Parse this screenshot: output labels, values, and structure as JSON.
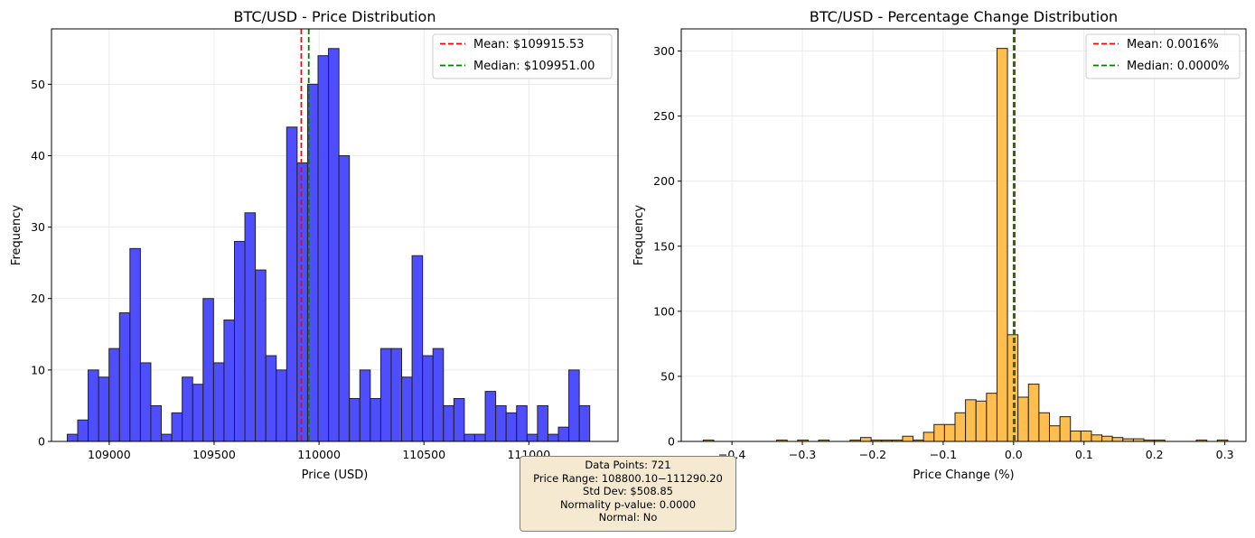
{
  "colors": {
    "bar1_fill": "#4444ff",
    "bar2_fill": "#ffbb44",
    "bar_edge": "#222222",
    "mean_line": "#ff0000",
    "median_line": "#008000",
    "grid": "#e6e6e6"
  },
  "chart_data": [
    {
      "type": "bar",
      "title": "BTC/USD - Price Distribution",
      "xlabel": "Price (USD)",
      "ylabel": "Frequency",
      "xlim": [
        108725,
        111425
      ],
      "ylim": [
        0,
        57.75
      ],
      "xticks": [
        109000,
        109500,
        110000,
        110500,
        111000
      ],
      "yticks": [
        0,
        10,
        20,
        30,
        40,
        50
      ],
      "grid": true,
      "legend_position": "top-right",
      "bin_start": 108800.1,
      "bin_end": 111290.2,
      "values": [
        1,
        3,
        10,
        9,
        13,
        18,
        27,
        11,
        5,
        1,
        4,
        9,
        8,
        20,
        11,
        17,
        28,
        32,
        24,
        12,
        10,
        44,
        39,
        50,
        54,
        55,
        40,
        6,
        10,
        6,
        13,
        13,
        9,
        26,
        12,
        13,
        5,
        6,
        1,
        1,
        7,
        5,
        4,
        5,
        1,
        5,
        1,
        2,
        10,
        5
      ],
      "mean": 109915.53,
      "median": 109951.0,
      "legend": [
        "Mean: $109915.53",
        "Median: $109951.00"
      ]
    },
    {
      "type": "bar",
      "title": "BTC/USD - Percentage Change Distribution",
      "xlabel": "Price Change (%)",
      "ylabel": "Frequency",
      "xlim": [
        -0.472,
        0.33
      ],
      "ylim": [
        0,
        317
      ],
      "xticks": [
        -0.4,
        -0.3,
        -0.2,
        -0.1,
        0.0,
        0.1,
        0.2,
        0.3
      ],
      "xtick_labels": [
        "−0.4",
        "−0.3",
        "−0.2",
        "−0.1",
        "0.0",
        "0.1",
        "0.2",
        "0.3"
      ],
      "yticks": [
        0,
        50,
        100,
        150,
        200,
        250,
        300
      ],
      "grid": true,
      "legend_position": "top-right",
      "bin_start": -0.4408,
      "bin_width": 0.0149,
      "values": [
        1,
        0,
        0,
        0,
        0,
        0,
        0,
        1,
        0,
        1,
        0,
        1,
        0,
        0,
        1,
        3,
        1,
        1,
        1,
        4,
        1,
        7,
        13,
        13,
        22,
        32,
        31,
        37,
        302,
        82,
        34,
        44,
        22,
        12,
        19,
        8,
        8,
        5,
        4,
        3,
        2,
        2,
        1,
        1,
        0,
        0,
        0,
        1,
        0,
        1
      ],
      "mean": 0.0016,
      "median": 0.0,
      "legend": [
        "Mean: 0.0016%",
        "Median: 0.0000%"
      ]
    }
  ],
  "stats": {
    "data_points": "Data Points: 721",
    "price_range": "Price Range: 108800.10−111290.20",
    "std_dev": "Std Dev: $508.85",
    "normality": "Normality p-value: 0.0000",
    "normal": "Normal: No"
  }
}
